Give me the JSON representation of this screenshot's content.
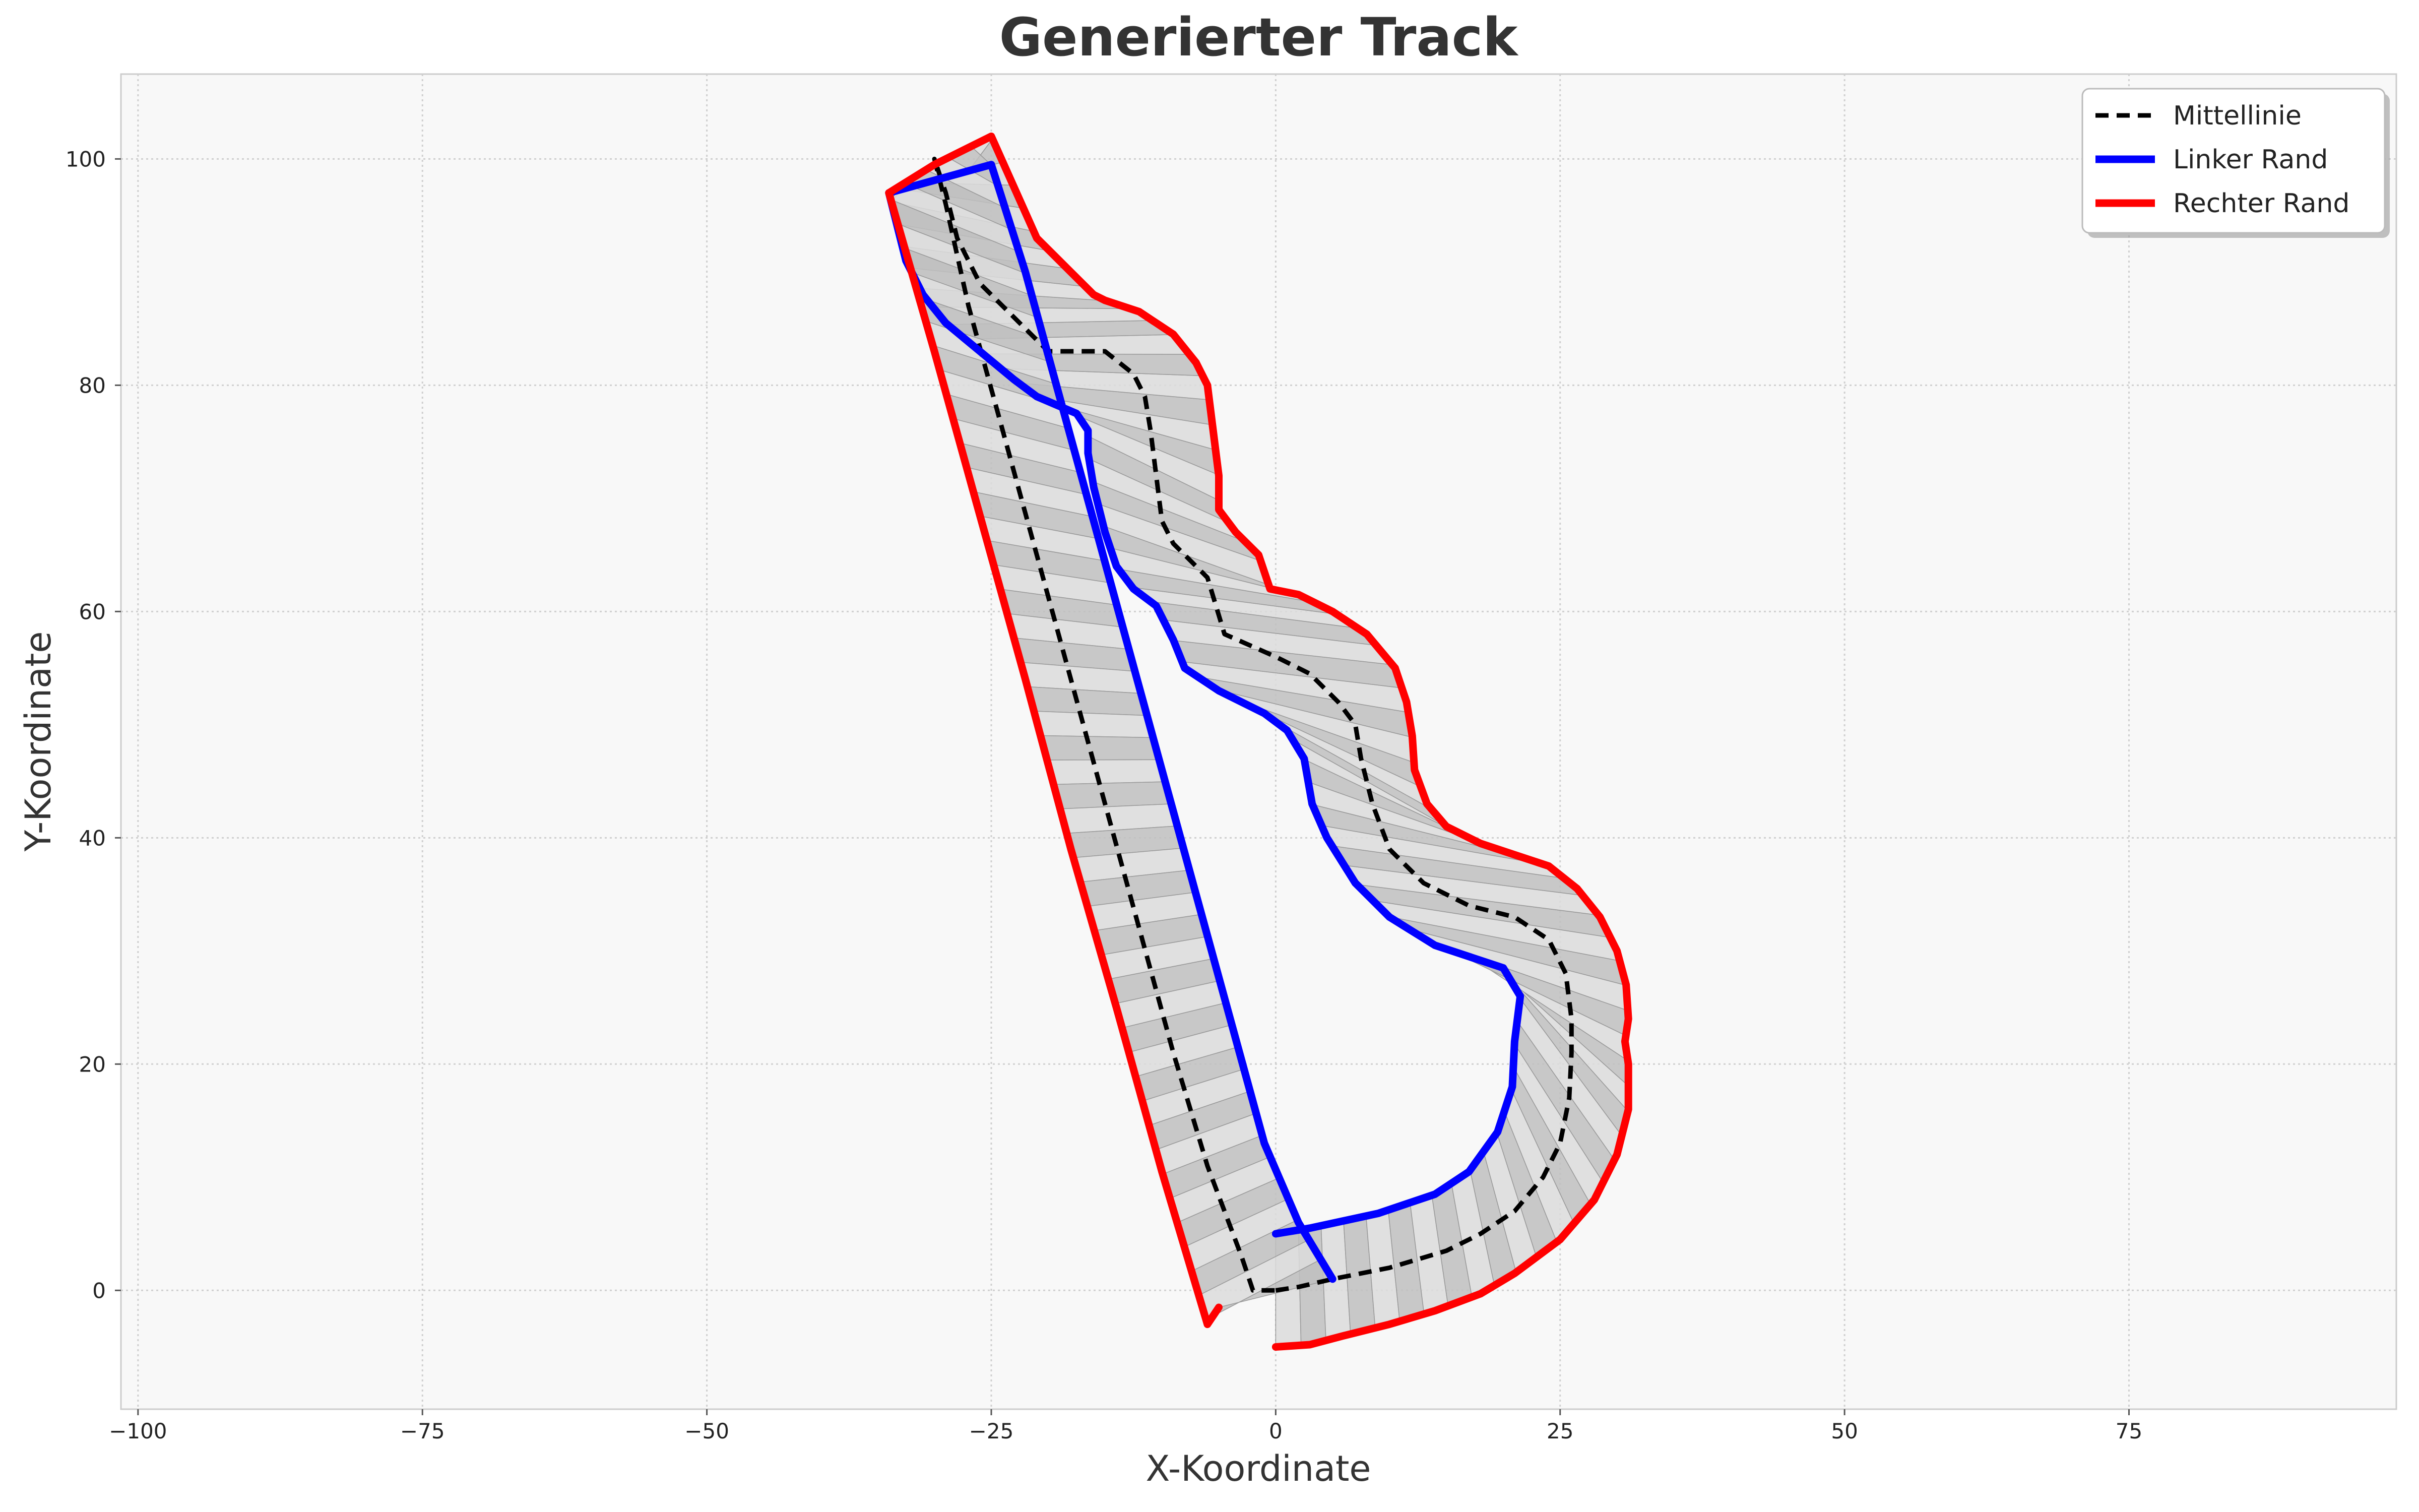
{
  "chart_data": {
    "type": "line",
    "title": "Generierter Track",
    "xlabel": "X-Koordinate",
    "ylabel": "Y-Koordinate",
    "xlim": [
      -101.5,
      98.5
    ],
    "ylim": [
      -10.5,
      107.5
    ],
    "xticks": [
      -100,
      -75,
      -50,
      -25,
      0,
      25,
      50,
      75
    ],
    "xtick_labels": [
      "−100",
      "−75",
      "−50",
      "−25",
      "0",
      "25",
      "50",
      "75"
    ],
    "yticks": [
      0,
      20,
      40,
      60,
      80,
      100
    ],
    "ytick_labels": [
      "0",
      "20",
      "40",
      "60",
      "80",
      "100"
    ],
    "grid": true,
    "legend_position": "top-right",
    "series": [
      {
        "name": "Mittellinie",
        "color": "#000000",
        "style": "dashed",
        "points": [
          [
            0,
            0
          ],
          [
            2,
            0.3
          ],
          [
            5,
            1
          ],
          [
            10,
            2
          ],
          [
            15,
            3.5
          ],
          [
            18,
            5
          ],
          [
            21,
            7
          ],
          [
            23.5,
            10
          ],
          [
            25,
            13
          ],
          [
            25.8,
            17
          ],
          [
            26,
            21
          ],
          [
            26,
            24
          ],
          [
            25.5,
            28
          ],
          [
            24,
            31
          ],
          [
            21,
            33
          ],
          [
            17,
            34
          ],
          [
            13,
            36
          ],
          [
            10,
            39
          ],
          [
            8.5,
            43
          ],
          [
            7.5,
            47
          ],
          [
            7,
            50
          ],
          [
            5.5,
            52
          ],
          [
            3,
            54.5
          ],
          [
            0,
            56
          ],
          [
            -4.5,
            58
          ],
          [
            -6,
            63
          ],
          [
            -9,
            66
          ],
          [
            -10,
            68
          ],
          [
            -10.5,
            72
          ],
          [
            -11,
            76
          ],
          [
            -11.5,
            79
          ],
          [
            -12.5,
            81
          ],
          [
            -15,
            83
          ],
          [
            -20,
            83
          ],
          [
            -23,
            86
          ],
          [
            -26,
            89
          ],
          [
            -28,
            93
          ],
          [
            -29,
            97
          ],
          [
            -30,
            100
          ],
          [
            -29,
            96
          ],
          [
            -27,
            87
          ],
          [
            -24,
            76
          ],
          [
            -21,
            65
          ],
          [
            -18,
            54
          ],
          [
            -15,
            43
          ],
          [
            -12,
            32
          ],
          [
            -9,
            21
          ],
          [
            -6,
            11
          ],
          [
            -3,
            3
          ],
          [
            -2,
            0
          ],
          [
            0,
            0
          ]
        ]
      },
      {
        "name": "Linker Rand",
        "color": "#0000ff",
        "style": "solid",
        "points": [
          [
            0,
            5
          ],
          [
            3,
            5.5
          ],
          [
            9,
            6.8
          ],
          [
            14,
            8.5
          ],
          [
            17,
            10.5
          ],
          [
            19.5,
            14
          ],
          [
            20.8,
            18
          ],
          [
            21,
            22
          ],
          [
            21.5,
            26
          ],
          [
            20,
            28.5
          ],
          [
            14,
            30.5
          ],
          [
            10,
            33
          ],
          [
            7,
            36
          ],
          [
            4.5,
            40
          ],
          [
            3.2,
            43
          ],
          [
            2.5,
            47
          ],
          [
            1,
            49.5
          ],
          [
            -1,
            51
          ],
          [
            -5,
            53
          ],
          [
            -8,
            55
          ],
          [
            -9,
            57.5
          ],
          [
            -10.5,
            60.5
          ],
          [
            -12.5,
            62
          ],
          [
            -14,
            64
          ],
          [
            -15,
            67
          ],
          [
            -16,
            71
          ],
          [
            -16.5,
            74
          ],
          [
            -16.5,
            76
          ],
          [
            -17.5,
            77.5
          ],
          [
            -21,
            79
          ],
          [
            -23,
            80.5
          ],
          [
            -26,
            83
          ],
          [
            -29,
            85.5
          ],
          [
            -31,
            88
          ],
          [
            -32.5,
            91
          ],
          [
            -34,
            97
          ],
          [
            -25,
            99.5
          ],
          [
            -22,
            90
          ],
          [
            -19,
            79
          ],
          [
            -16,
            68
          ],
          [
            -13,
            57
          ],
          [
            -10,
            46
          ],
          [
            -7,
            35
          ],
          [
            -4,
            24
          ],
          [
            -1,
            13
          ],
          [
            2,
            6
          ],
          [
            5,
            1
          ]
        ]
      },
      {
        "name": "Rechter Rand",
        "color": "#ff0000",
        "style": "solid",
        "points": [
          [
            0,
            -5
          ],
          [
            3,
            -4.8
          ],
          [
            6,
            -4
          ],
          [
            10,
            -3
          ],
          [
            14,
            -1.8
          ],
          [
            18,
            -0.3
          ],
          [
            21,
            1.5
          ],
          [
            25,
            4.5
          ],
          [
            28,
            8
          ],
          [
            30,
            12
          ],
          [
            31,
            16
          ],
          [
            31,
            20
          ],
          [
            30.7,
            22
          ],
          [
            31,
            24
          ],
          [
            30.8,
            27
          ],
          [
            30,
            30
          ],
          [
            28.5,
            33
          ],
          [
            26.5,
            35.5
          ],
          [
            24,
            37.5
          ],
          [
            21,
            38.5
          ],
          [
            18,
            39.5
          ],
          [
            15,
            41
          ],
          [
            13.3,
            43
          ],
          [
            12.2,
            46
          ],
          [
            12,
            49
          ],
          [
            11.5,
            52
          ],
          [
            10.5,
            55
          ],
          [
            8,
            58
          ],
          [
            5,
            60
          ],
          [
            2,
            61.5
          ],
          [
            -0.5,
            62
          ],
          [
            -1.5,
            65
          ],
          [
            -3.5,
            67
          ],
          [
            -5,
            69
          ],
          [
            -5,
            72
          ],
          [
            -5.5,
            76
          ],
          [
            -6,
            80
          ],
          [
            -7,
            82
          ],
          [
            -9,
            84.5
          ],
          [
            -12,
            86.5
          ],
          [
            -15,
            87.5
          ],
          [
            -16,
            88
          ],
          [
            -18,
            90
          ],
          [
            -21,
            93
          ],
          [
            -25,
            102
          ],
          [
            -30,
            99.5
          ],
          [
            -34,
            97
          ],
          [
            -30,
            83
          ],
          [
            -26,
            68.5
          ],
          [
            -22,
            54
          ],
          [
            -18,
            39
          ],
          [
            -14,
            25
          ],
          [
            -10,
            10.5
          ],
          [
            -6,
            -3
          ],
          [
            -5,
            -1.5
          ]
        ]
      }
    ]
  }
}
